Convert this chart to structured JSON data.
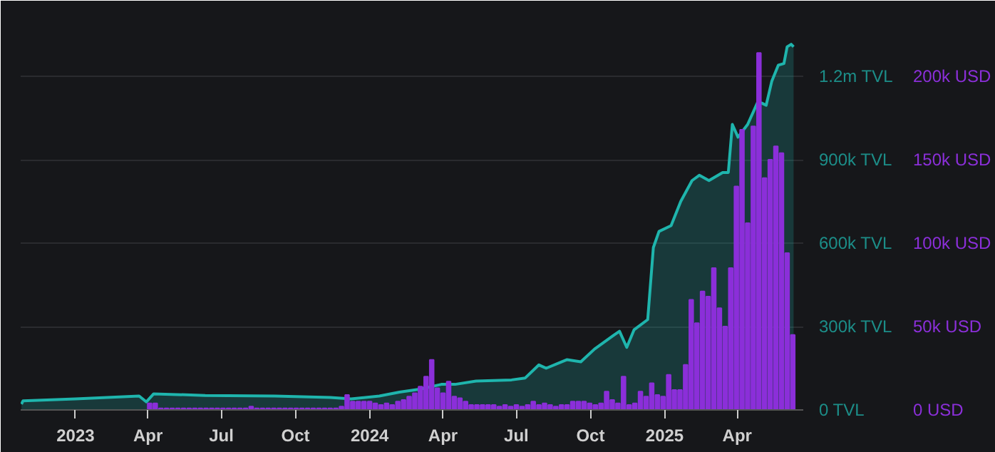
{
  "chart_data": {
    "type": "area",
    "xlim": [
      "2022-10-25",
      "2025-06-22"
    ],
    "xticks": [
      {
        "value": "2023-01-01",
        "label": "2023"
      },
      {
        "value": "2023-04-01",
        "label": "Apr"
      },
      {
        "value": "2023-07-01",
        "label": "Jul"
      },
      {
        "value": "2023-10-01",
        "label": "Oct"
      },
      {
        "value": "2024-01-01",
        "label": "2024"
      },
      {
        "value": "2024-04-01",
        "label": "Apr"
      },
      {
        "value": "2024-07-01",
        "label": "Jul"
      },
      {
        "value": "2024-10-01",
        "label": "Oct"
      },
      {
        "value": "2025-01-01",
        "label": "2025"
      },
      {
        "value": "2025-04-01",
        "label": "Apr"
      }
    ],
    "ylim": [
      0,
      1400000
    ],
    "yticks": [
      {
        "value": 0,
        "label": "0 TVL"
      },
      {
        "value": 300000,
        "label": "300k TVL"
      },
      {
        "value": 600000,
        "label": "600k TVL"
      },
      {
        "value": 900000,
        "label": "900k TVL"
      },
      {
        "value": 1200000,
        "label": "1.2m TVL"
      }
    ],
    "y2lim": [
      0,
      233333
    ],
    "y2ticks": [
      {
        "value": 0,
        "label": "0 USD"
      },
      {
        "value": 50000,
        "label": "50k USD"
      },
      {
        "value": 100000,
        "label": "100k USD"
      },
      {
        "value": 150000,
        "label": "150k USD"
      },
      {
        "value": 200000,
        "label": "200k USD"
      }
    ],
    "grid": "y",
    "series": [
      {
        "color": "#1fb5ad",
        "x": [
          "2022-10-26",
          "2022-10-28",
          "2023-01-01",
          "2023-03-21",
          "2023-03-30",
          "2023-04-08",
          "2023-06-11",
          "2023-09-05",
          "2023-11-13",
          "2023-12-09",
          "2024-01-13",
          "2024-02-07",
          "2024-03-04",
          "2024-03-30",
          "2024-04-16",
          "2024-05-12",
          "2024-06-25",
          "2024-07-12",
          "2024-07-29",
          "2024-08-07",
          "2024-09-02",
          "2024-09-19",
          "2024-10-06",
          "2024-10-29",
          "2024-11-06",
          "2024-11-15",
          "2024-11-24",
          "2024-12-11",
          "2024-12-18",
          "2024-12-25",
          "2025-01-09",
          "2025-01-21",
          "2025-02-04",
          "2025-02-13",
          "2025-02-25",
          "2025-03-14",
          "2025-03-21",
          "2025-03-26",
          "2025-04-02",
          "2025-04-14",
          "2025-04-26",
          "2025-05-01",
          "2025-05-07",
          "2025-05-14",
          "2025-05-22",
          "2025-05-29",
          "2025-06-02",
          "2025-06-07",
          "2025-06-10"
        ],
        "values": [
          21000,
          33000,
          40000,
          50000,
          29000,
          58000,
          52000,
          50000,
          45000,
          40000,
          50000,
          64000,
          75000,
          92000,
          92000,
          104000,
          108000,
          115000,
          162000,
          150000,
          181000,
          173000,
          219000,
          267000,
          283000,
          225000,
          288000,
          325000,
          584000,
          642000,
          663000,
          750000,
          825000,
          844000,
          825000,
          854000,
          854000,
          1027000,
          981000,
          1027000,
          1104000,
          1104000,
          1096000,
          1183000,
          1240000,
          1246000,
          1306000,
          1315000,
          1306000
        ]
      },
      {
        "type": "bar",
        "axis": "y2",
        "color": "#8b2fd9",
        "x": [
          "2023-04-03",
          "2023-04-10",
          "2023-04-17",
          "2023-04-24",
          "2023-05-01",
          "2023-05-08",
          "2023-05-15",
          "2023-05-22",
          "2023-05-29",
          "2023-06-05",
          "2023-06-12",
          "2023-06-19",
          "2023-06-26",
          "2023-07-03",
          "2023-07-10",
          "2023-07-17",
          "2023-07-24",
          "2023-07-31",
          "2023-08-07",
          "2023-08-14",
          "2023-08-21",
          "2023-08-28",
          "2023-09-04",
          "2023-09-11",
          "2023-09-18",
          "2023-09-25",
          "2023-10-02",
          "2023-10-09",
          "2023-10-16",
          "2023-10-23",
          "2023-10-30",
          "2023-11-06",
          "2023-11-13",
          "2023-11-20",
          "2023-11-27",
          "2023-12-04",
          "2023-12-11",
          "2023-12-18",
          "2023-12-25",
          "2024-01-01",
          "2024-01-08",
          "2024-01-15",
          "2024-01-22",
          "2024-01-29",
          "2024-02-05",
          "2024-02-12",
          "2024-02-19",
          "2024-02-26",
          "2024-03-04",
          "2024-03-11",
          "2024-03-18",
          "2024-03-25",
          "2024-04-01",
          "2024-04-08",
          "2024-04-15",
          "2024-04-22",
          "2024-04-29",
          "2024-05-06",
          "2024-05-13",
          "2024-05-20",
          "2024-05-27",
          "2024-06-03",
          "2024-06-10",
          "2024-06-17",
          "2024-06-24",
          "2024-07-01",
          "2024-07-08",
          "2024-07-15",
          "2024-07-22",
          "2024-07-29",
          "2024-08-05",
          "2024-08-12",
          "2024-08-19",
          "2024-08-26",
          "2024-09-02",
          "2024-09-09",
          "2024-09-16",
          "2024-09-23",
          "2024-09-30",
          "2024-10-07",
          "2024-10-14",
          "2024-10-21",
          "2024-10-28",
          "2024-11-04",
          "2024-11-11",
          "2024-11-18",
          "2024-11-25",
          "2024-12-02",
          "2024-12-09",
          "2024-12-16",
          "2024-12-23",
          "2024-12-30",
          "2025-01-06",
          "2025-01-13",
          "2025-01-20",
          "2025-01-27",
          "2025-02-03",
          "2025-02-10",
          "2025-02-17",
          "2025-02-24",
          "2025-03-03",
          "2025-03-10",
          "2025-03-17",
          "2025-03-24",
          "2025-03-31",
          "2025-04-07",
          "2025-04-14",
          "2025-04-21",
          "2025-04-28",
          "2025-05-05",
          "2025-05-12",
          "2025-05-19",
          "2025-05-26",
          "2025-06-02",
          "2025-06-09"
        ],
        "values": [
          4000,
          4000,
          1000,
          1000,
          1000,
          1000,
          1000,
          1000,
          1000,
          1000,
          1000,
          1000,
          1000,
          1000,
          1000,
          1000,
          1000,
          1000,
          2000,
          1000,
          1000,
          1000,
          1000,
          1000,
          1000,
          1000,
          1000,
          1000,
          1000,
          1000,
          1000,
          1000,
          1000,
          1000,
          2000,
          9000,
          5000,
          5000,
          5000,
          5000,
          4000,
          3000,
          4000,
          3000,
          5000,
          6000,
          8000,
          10000,
          14000,
          20000,
          30000,
          13000,
          10000,
          17000,
          8000,
          7000,
          5000,
          3000,
          3000,
          3000,
          3000,
          3000,
          2000,
          3000,
          2000,
          3000,
          2000,
          3000,
          5000,
          3000,
          4000,
          3000,
          2000,
          3000,
          3000,
          5000,
          5000,
          5000,
          4000,
          3000,
          4000,
          11000,
          6000,
          4000,
          20000,
          3000,
          4000,
          11000,
          8000,
          16000,
          9000,
          8000,
          21000,
          12000,
          12000,
          27000,
          66000,
          52000,
          71000,
          68000,
          85000,
          61000,
          50000,
          85000,
          134000,
          168000,
          112000,
          170000,
          214000,
          139000,
          150000,
          158000,
          154000,
          94000,
          45000
        ]
      }
    ]
  }
}
